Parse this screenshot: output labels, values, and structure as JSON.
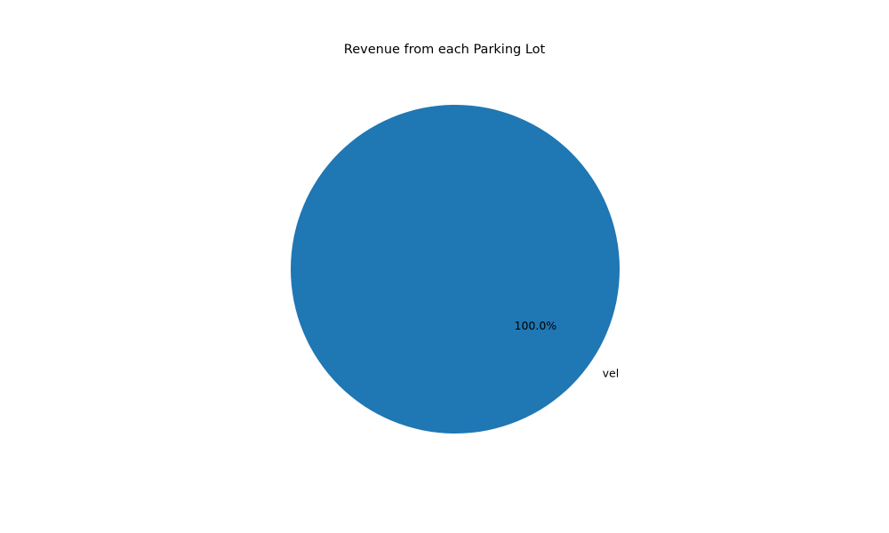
{
  "chart_data": {
    "type": "pie",
    "title": "Revenue from each Parking Lot",
    "labels": [
      "vel"
    ],
    "values": [
      100
    ],
    "percent_labels": [
      "100.0%"
    ],
    "colors": [
      "#1f77b4"
    ],
    "legend": "none"
  }
}
